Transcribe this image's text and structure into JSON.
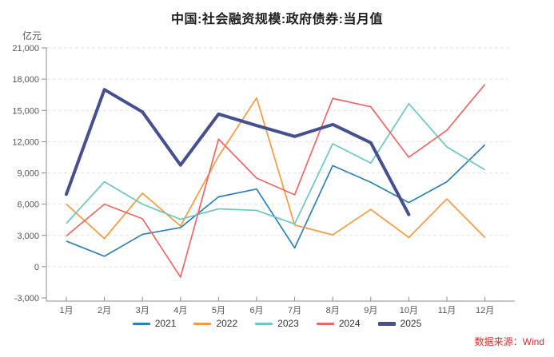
{
  "title": "中国:社会融资规模:政府债券:当月值",
  "y_axis": {
    "unit_label": "亿元",
    "tick_labels": [
      "21,000",
      "18,000",
      "15,000",
      "12,000",
      "9,000",
      "6,000",
      "3,000",
      "0",
      "-3,000"
    ]
  },
  "source_label": "数据来源：Wind",
  "colors": {
    "axis_line": "#8c8c8c",
    "grid_line": "#e2e2e2",
    "tick_text": "#555555",
    "source_text": "#d92b2b"
  },
  "chart_data": {
    "type": "line",
    "title": "中国:社会融资规模:政府债券:当月值",
    "ylabel": "亿元",
    "xlabel": "",
    "categories": [
      "1月",
      "2月",
      "3月",
      "4月",
      "5月",
      "6月",
      "7月",
      "8月",
      "9月",
      "10月",
      "11月",
      "12月"
    ],
    "series": [
      {
        "name": "2021",
        "color": "#2f7fb8",
        "line_width": 1.7,
        "values": [
          2450,
          1000,
          3100,
          3750,
          6700,
          7450,
          1800,
          9700,
          8100,
          6150,
          8150,
          11700
        ]
      },
      {
        "name": "2022",
        "color": "#f7993d",
        "line_width": 1.7,
        "values": [
          6000,
          2700,
          7050,
          3900,
          10600,
          16200,
          4000,
          3050,
          5500,
          2800,
          6500,
          2800
        ]
      },
      {
        "name": "2023",
        "color": "#6cc7c2",
        "line_width": 1.7,
        "values": [
          4150,
          8150,
          6000,
          4550,
          5550,
          5400,
          4100,
          11800,
          9950,
          15650,
          11500,
          9300
        ]
      },
      {
        "name": "2024",
        "color": "#ee6666",
        "line_width": 1.7,
        "values": [
          2950,
          6000,
          4600,
          -1000,
          12250,
          8500,
          6900,
          16150,
          15350,
          10500,
          13100,
          17500
        ]
      },
      {
        "name": "2025",
        "color": "#44508f",
        "line_width": 4,
        "values": [
          6950,
          17000,
          14850,
          9750,
          14650,
          13550,
          12500,
          13650,
          11900,
          5000,
          null,
          null
        ]
      }
    ],
    "ylim": [
      -3000,
      21000
    ],
    "ytick_step": 3000,
    "grid": true,
    "grid_style": "dashed",
    "legend_position": "bottom"
  }
}
